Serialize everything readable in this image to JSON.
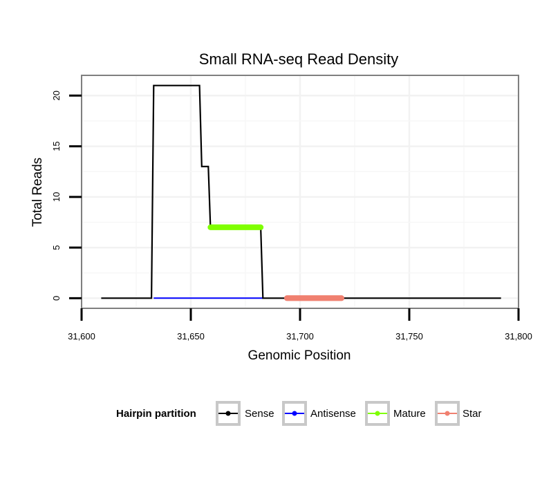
{
  "chart_data": {
    "type": "line",
    "title": "Small RNA-seq Read Density",
    "xlabel": "Genomic Position",
    "ylabel": "Total Reads",
    "xlim": [
      31600,
      31800
    ],
    "ylim": [
      -1,
      22
    ],
    "x_ticks": [
      31600,
      31650,
      31700,
      31750,
      31800
    ],
    "x_tick_labels": [
      "31,600",
      "31,650",
      "31,700",
      "31,750",
      "31,800"
    ],
    "y_ticks": [
      0,
      5,
      10,
      15,
      20
    ],
    "y_tick_labels": [
      "0",
      "5",
      "10",
      "15",
      "20"
    ],
    "grid": true,
    "legend": {
      "title": "Hairpin partition",
      "placement": "bottom",
      "entries": [
        {
          "name": "Sense",
          "color": "#000000"
        },
        {
          "name": "Antisense",
          "color": "#0000ff"
        },
        {
          "name": "Mature",
          "color": "#7fff00"
        },
        {
          "name": "Star",
          "color": "#f08070"
        }
      ]
    },
    "series": [
      {
        "name": "Sense",
        "color": "#000000",
        "x": [
          31609,
          31632,
          31633,
          31654,
          31655,
          31658,
          31659,
          31682,
          31683,
          31792
        ],
        "y": [
          0,
          0,
          21,
          21,
          13,
          13,
          7,
          7,
          0,
          0
        ]
      },
      {
        "name": "Antisense",
        "color": "#0000ff",
        "x": [
          31633,
          31683
        ],
        "y": [
          0,
          0
        ]
      },
      {
        "name": "Mature",
        "color": "#7fff00",
        "x": [
          31659,
          31682
        ],
        "y": [
          7,
          7
        ]
      },
      {
        "name": "Star",
        "color": "#f08070",
        "x": [
          31694,
          31719
        ],
        "y": [
          0,
          0
        ]
      }
    ]
  }
}
